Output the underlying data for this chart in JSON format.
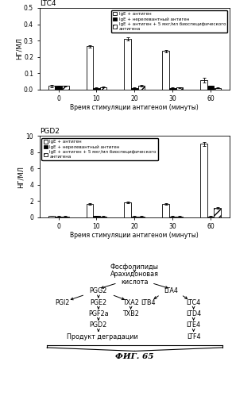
{
  "ltc4": {
    "title": "LTC4",
    "ylabel": "НГ/МЛ",
    "xlabel": "Время стимуляции антигеном (минуты)",
    "times": [
      0,
      10,
      20,
      30,
      60
    ],
    "ige_antigen": [
      0.02,
      0.265,
      0.31,
      0.235,
      0.055
    ],
    "ige_irrelevant": [
      0.02,
      0.01,
      0.01,
      0.01,
      0.02
    ],
    "ige_bispecific": [
      0.02,
      0.015,
      0.022,
      0.012,
      0.01
    ],
    "ige_antigen_err": [
      0.005,
      0.008,
      0.01,
      0.008,
      0.015
    ],
    "ige_irrelevant_err": [
      0.004,
      0.003,
      0.003,
      0.002,
      0.004
    ],
    "ige_bispecific_err": [
      0.004,
      0.003,
      0.004,
      0.003,
      0.003
    ],
    "ylim": [
      0,
      0.5
    ],
    "yticks": [
      0.0,
      0.1,
      0.2,
      0.3,
      0.4,
      0.5
    ]
  },
  "pgd2": {
    "title": "PGD2",
    "ylabel": "НГ/МЛ",
    "xlabel": "Время стимуляции антигеном (минуты)",
    "times": [
      0,
      10,
      20,
      30,
      60
    ],
    "ige_antigen": [
      0.18,
      1.6,
      1.85,
      1.65,
      9.0
    ],
    "ige_irrelevant": [
      0.12,
      0.18,
      0.12,
      0.12,
      0.12
    ],
    "ige_bispecific": [
      0.12,
      0.12,
      0.12,
      0.12,
      1.15
    ],
    "ige_antigen_err": [
      0.04,
      0.1,
      0.1,
      0.1,
      0.25
    ],
    "ige_irrelevant_err": [
      0.04,
      0.04,
      0.04,
      0.04,
      0.04
    ],
    "ige_bispecific_err": [
      0.04,
      0.04,
      0.04,
      0.04,
      0.08
    ],
    "ylim": [
      0,
      10
    ],
    "yticks": [
      0,
      2,
      4,
      6,
      8,
      10
    ]
  },
  "legend_labels": [
    "IgE + антиген",
    "IgE + нерелевантный антиген",
    "IgE + антиген + 5 мкг/мл биоспецифического\nантигена"
  ],
  "fig_label": "ФИГ. 65",
  "pathway": {
    "fosfolipidy": "Фосфолипиды",
    "arachidonovaya": "Арахидоновая\nкислота",
    "produkt": "Продукт деградации"
  }
}
